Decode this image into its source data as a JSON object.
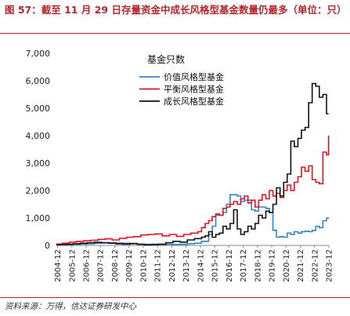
{
  "figure": {
    "title": "图 57：截至 11 月 29 日存量资金中成长风格型基金数量仍最多（单位：只）",
    "source": "资料来源：万得，信达证券研发中心"
  },
  "colors": {
    "value": "#2e86c9",
    "balanced": "#e0141e",
    "growth": "#111111",
    "accent": "#b5262b"
  },
  "chart_data": {
    "type": "line",
    "title": "",
    "legend_title": "基金只数",
    "legend_position": "top-center",
    "xlabel": "",
    "ylabel": "",
    "ylim": [
      0,
      7000
    ],
    "yticks": [
      0,
      1000,
      2000,
      3000,
      4000,
      5000,
      6000,
      7000
    ],
    "ytick_labels": [
      "0",
      "1,000",
      "2,000",
      "3,000",
      "4,000",
      "5,000",
      "6,000",
      "7,000"
    ],
    "xlim": [
      2004.8333,
      2023.9167
    ],
    "xtick_labels": [
      "2004-12",
      "2005-12",
      "2006-12",
      "2007-12",
      "2008-12",
      "2009-12",
      "2010-12",
      "2011-12",
      "2012-12",
      "2013-12",
      "2014-12",
      "2015-12",
      "2016-12",
      "2017-12",
      "2018-12",
      "2019-12",
      "2020-12",
      "2021-12",
      "2022-12",
      "2023-12"
    ],
    "grid": false,
    "series": [
      {
        "name": "价值风格型基金",
        "color_key": "value",
        "x": [
          2004.83,
          2005.5,
          2005.75,
          2006.5,
          2007.0,
          2007.5,
          2008.0,
          2008.5,
          2009.0,
          2009.5,
          2010.0,
          2010.5,
          2011.0,
          2011.5,
          2012.0,
          2012.5,
          2013.0,
          2013.5,
          2014.0,
          2014.5,
          2015.0,
          2015.5,
          2015.75,
          2016.0,
          2016.5,
          2016.75,
          2017.0,
          2017.5,
          2017.75,
          2018.0,
          2018.5,
          2018.75,
          2019.0,
          2019.5,
          2019.75,
          2020.0,
          2020.25,
          2020.5,
          2020.75,
          2021.0,
          2021.25,
          2021.5,
          2021.75,
          2022.0,
          2022.25,
          2022.5,
          2022.75,
          2023.0,
          2023.25,
          2023.5,
          2023.75,
          2023.9
        ],
        "y": [
          20,
          30,
          40,
          50,
          60,
          80,
          90,
          100,
          90,
          80,
          60,
          50,
          40,
          45,
          50,
          40,
          35,
          40,
          60,
          80,
          150,
          400,
          700,
          1100,
          1200,
          1500,
          1850,
          1800,
          1600,
          1650,
          1300,
          1250,
          1400,
          1350,
          1200,
          550,
          300,
          320,
          300,
          450,
          400,
          500,
          450,
          500,
          520,
          500,
          550,
          700,
          650,
          900,
          1000,
          980
        ]
      },
      {
        "name": "平衡风格型基金",
        "color_key": "balanced",
        "x": [
          2004.83,
          2005.25,
          2005.75,
          2006.25,
          2006.75,
          2007.25,
          2007.75,
          2008.25,
          2008.75,
          2009.25,
          2009.75,
          2010.25,
          2010.75,
          2011.25,
          2011.75,
          2012.25,
          2012.75,
          2013.25,
          2013.75,
          2014.25,
          2014.75,
          2015.0,
          2015.25,
          2015.5,
          2015.75,
          2016.0,
          2016.25,
          2016.5,
          2016.75,
          2017.0,
          2017.25,
          2017.5,
          2017.75,
          2018.0,
          2018.25,
          2018.5,
          2018.75,
          2019.0,
          2019.25,
          2019.5,
          2019.75,
          2020.0,
          2020.25,
          2020.5,
          2020.75,
          2021.0,
          2021.25,
          2021.5,
          2021.75,
          2022.0,
          2022.25,
          2022.5,
          2022.75,
          2023.0,
          2023.25,
          2023.5,
          2023.75,
          2023.9
        ],
        "y": [
          50,
          80,
          120,
          150,
          170,
          190,
          220,
          240,
          200,
          260,
          300,
          320,
          380,
          400,
          420,
          350,
          400,
          330,
          400,
          450,
          500,
          650,
          800,
          900,
          1050,
          1150,
          1100,
          1350,
          1400,
          1500,
          1600,
          1500,
          1700,
          1800,
          1550,
          1650,
          1400,
          1650,
          1850,
          1700,
          2000,
          1800,
          1900,
          1750,
          2000,
          2200,
          2000,
          2300,
          2500,
          2850,
          2700,
          2900,
          2400,
          2300,
          2250,
          3400,
          3300,
          4000
        ]
      },
      {
        "name": "成长风格型基金",
        "color_key": "growth",
        "x": [
          2004.83,
          2005.5,
          2006.0,
          2006.5,
          2007.0,
          2007.5,
          2008.0,
          2008.5,
          2009.0,
          2009.5,
          2010.0,
          2010.5,
          2011.0,
          2011.5,
          2012.0,
          2012.5,
          2013.0,
          2013.5,
          2014.0,
          2014.5,
          2015.0,
          2015.25,
          2015.5,
          2015.75,
          2016.0,
          2016.25,
          2016.5,
          2016.75,
          2017.0,
          2017.25,
          2017.5,
          2017.75,
          2018.0,
          2018.25,
          2018.5,
          2018.75,
          2019.0,
          2019.25,
          2019.5,
          2019.75,
          2020.0,
          2020.25,
          2020.5,
          2020.75,
          2021.0,
          2021.25,
          2021.5,
          2021.75,
          2022.0,
          2022.25,
          2022.5,
          2022.75,
          2023.0,
          2023.25,
          2023.5,
          2023.75,
          2023.9
        ],
        "y": [
          30,
          40,
          60,
          80,
          100,
          110,
          100,
          80,
          60,
          50,
          70,
          40,
          20,
          30,
          40,
          100,
          150,
          120,
          200,
          250,
          300,
          350,
          500,
          300,
          400,
          450,
          700,
          600,
          800,
          1300,
          600,
          400,
          500,
          700,
          600,
          800,
          1100,
          1000,
          1250,
          1200,
          1500,
          2100,
          1800,
          2300,
          2600,
          3800,
          3600,
          3900,
          4200,
          4300,
          5200,
          5900,
          5800,
          5400,
          5500,
          4800,
          4800
        ]
      }
    ]
  }
}
